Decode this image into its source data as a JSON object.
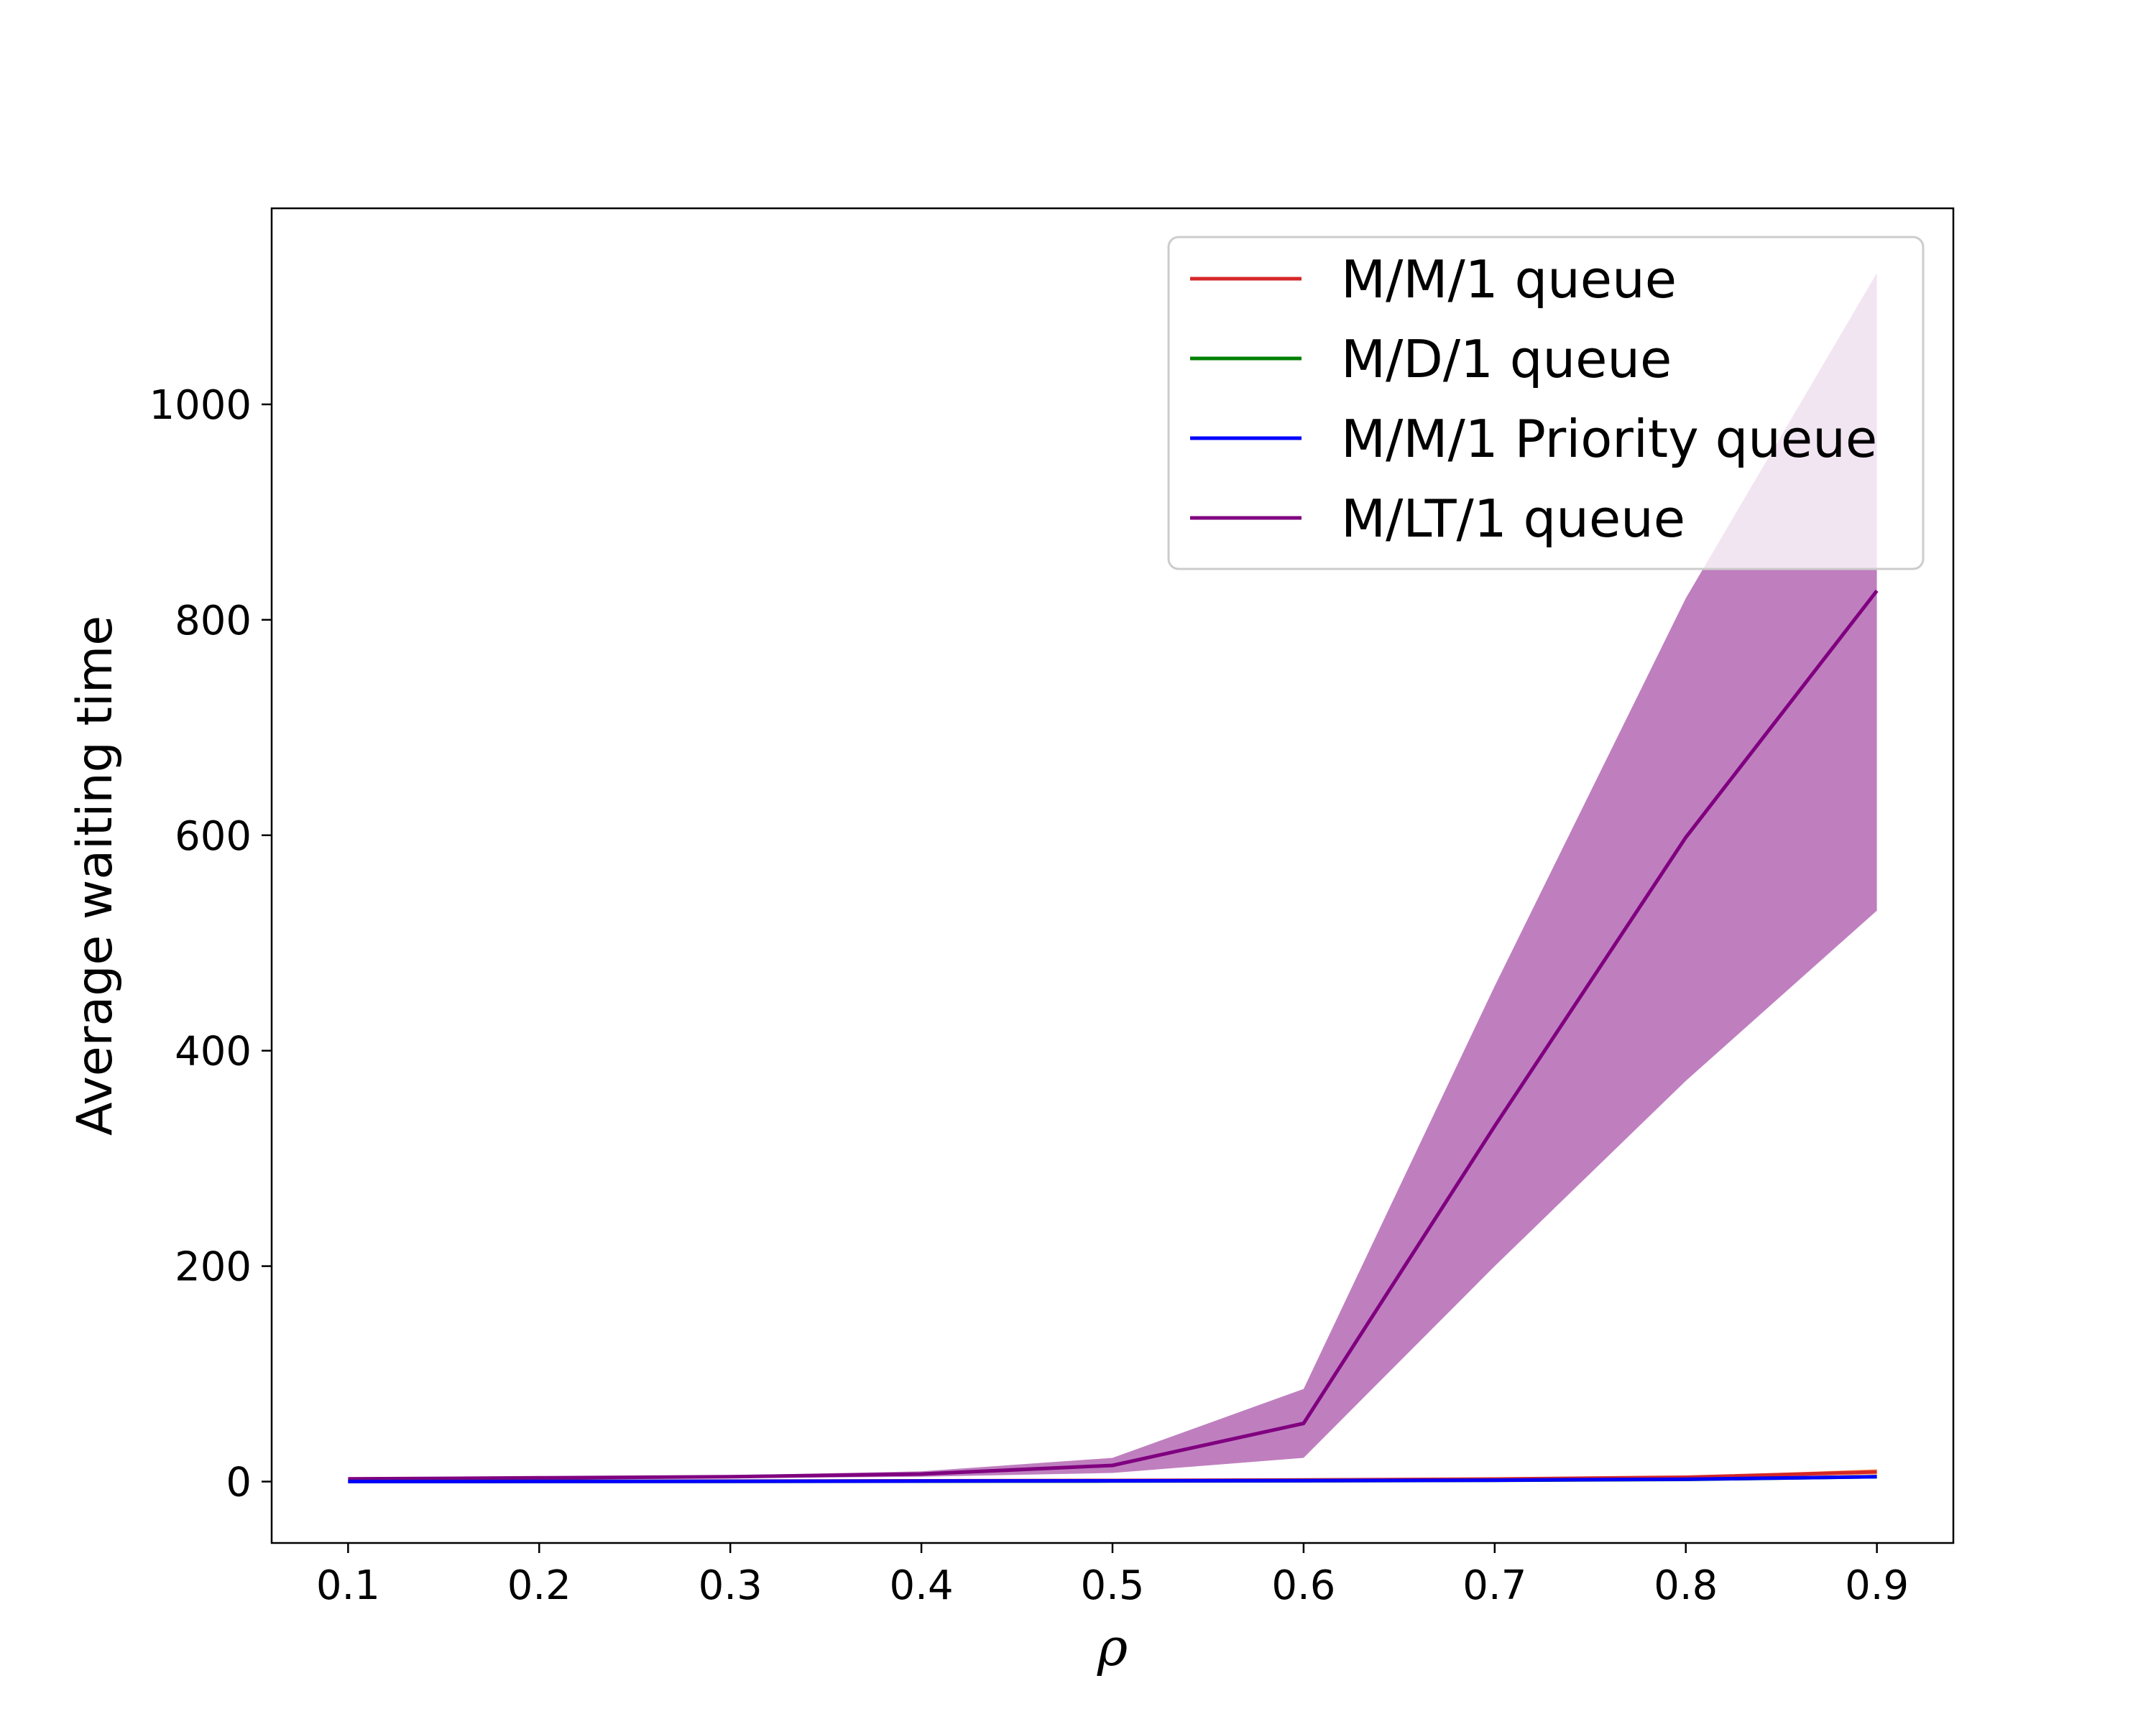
{
  "chart_data": {
    "type": "line",
    "title": "",
    "xlabel": "ρ",
    "ylabel": "Average waiting time",
    "xlim": [
      0.06,
      0.94
    ],
    "ylim": [
      -57,
      1182
    ],
    "grid": false,
    "legend_position": "top-right",
    "x": [
      0.1,
      0.2,
      0.3,
      0.4,
      0.5,
      0.6,
      0.7,
      0.8,
      0.9
    ],
    "xticks": [
      0.1,
      0.2,
      0.3,
      0.4,
      0.5,
      0.6,
      0.7,
      0.8,
      0.9
    ],
    "xtick_labels": [
      "0.1",
      "0.2",
      "0.3",
      "0.4",
      "0.5",
      "0.6",
      "0.7",
      "0.8",
      "0.9"
    ],
    "yticks": [
      0,
      200,
      400,
      600,
      800,
      1000
    ],
    "ytick_labels": [
      "0",
      "200",
      "400",
      "600",
      "800",
      "1000"
    ],
    "series": [
      {
        "name": "M/M/1 queue",
        "color": "#d62728",
        "values": [
          0.11,
          0.25,
          0.43,
          0.67,
          1.0,
          1.5,
          2.33,
          4.0,
          9.0
        ],
        "band_lower": [
          0.1,
          0.23,
          0.4,
          0.6,
          0.9,
          1.3,
          2.0,
          3.4,
          6.5
        ],
        "band_upper": [
          0.12,
          0.27,
          0.46,
          0.74,
          1.1,
          1.7,
          2.7,
          4.7,
          11.5
        ]
      },
      {
        "name": "M/D/1 queue",
        "color": "#008000",
        "values": [
          0.06,
          0.13,
          0.21,
          0.33,
          0.5,
          0.75,
          1.17,
          2.0,
          4.5
        ]
      },
      {
        "name": "M/M/1 Priority queue",
        "color": "#0000ff",
        "values": [
          0.08,
          0.17,
          0.3,
          0.45,
          0.65,
          0.9,
          1.3,
          2.2,
          4.5
        ]
      },
      {
        "name": "M/LT/1 queue",
        "color": "#800080",
        "values": [
          2.5,
          3.5,
          4.5,
          7,
          15,
          54,
          330,
          598,
          827
        ],
        "band_lower": [
          2,
          2.8,
          3.2,
          4.5,
          8,
          22,
          200,
          372,
          530
        ],
        "band_upper": [
          3,
          4.2,
          5.8,
          9.5,
          22,
          86,
          460,
          820,
          1122
        ]
      }
    ]
  }
}
